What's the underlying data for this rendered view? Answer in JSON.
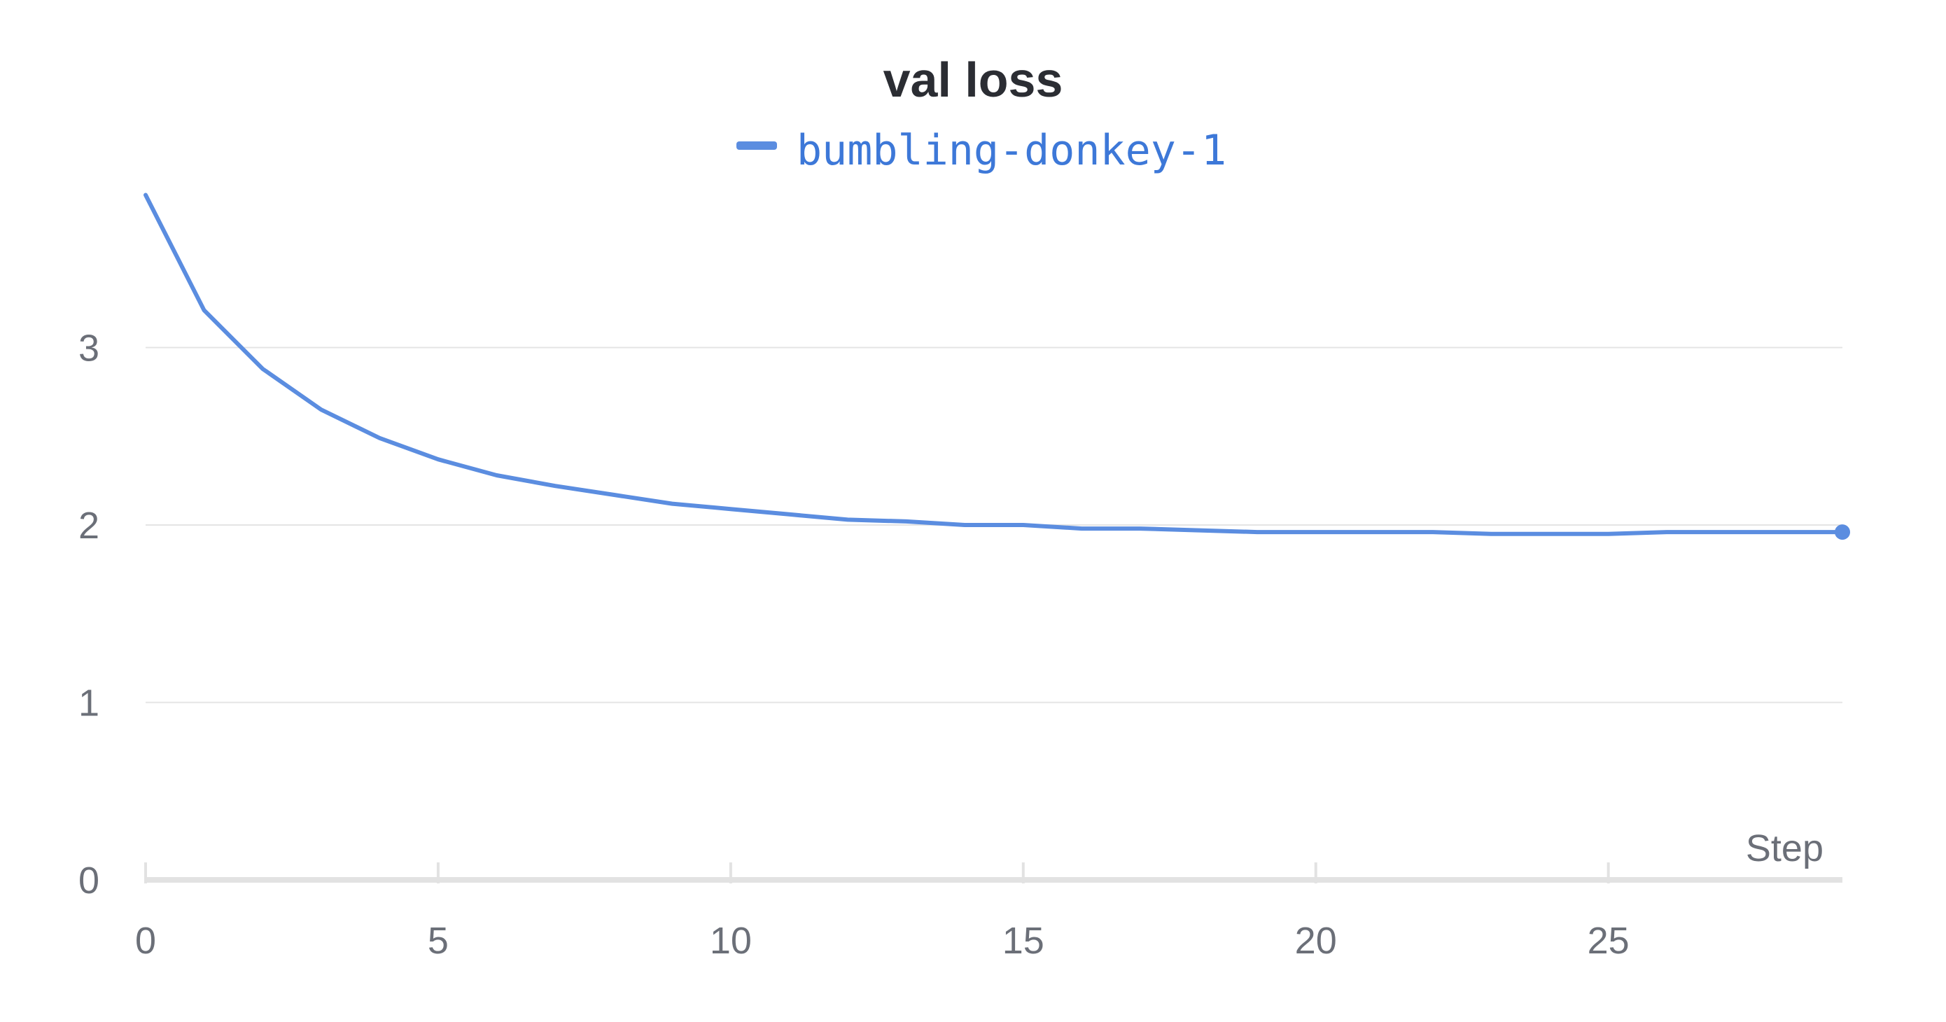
{
  "chart_data": {
    "type": "line",
    "title": "val loss",
    "xlabel": "Step",
    "ylabel": "",
    "xlim": [
      0,
      29
    ],
    "ylim": [
      0,
      3.9
    ],
    "x_ticks": [
      "0",
      "5",
      "10",
      "15",
      "20",
      "25"
    ],
    "y_ticks": [
      "0",
      "1",
      "2",
      "3"
    ],
    "grid": "horizontal",
    "legend": "top-center",
    "colors": {
      "series": "#5b8de0",
      "grid": "#e4e4e4",
      "axis": "#e2e2e2",
      "text": "#6b6f78"
    },
    "series": [
      {
        "name": "bumbling-donkey-1",
        "x": [
          0,
          1,
          2,
          3,
          4,
          5,
          6,
          7,
          8,
          9,
          10,
          11,
          12,
          13,
          14,
          15,
          16,
          17,
          18,
          19,
          20,
          21,
          22,
          23,
          24,
          25,
          26,
          27,
          28,
          29
        ],
        "values": [
          3.86,
          3.21,
          2.88,
          2.65,
          2.49,
          2.37,
          2.28,
          2.22,
          2.17,
          2.12,
          2.09,
          2.06,
          2.03,
          2.02,
          2.0,
          2.0,
          1.98,
          1.98,
          1.97,
          1.96,
          1.96,
          1.96,
          1.96,
          1.95,
          1.95,
          1.95,
          1.96,
          1.96,
          1.96,
          1.96
        ]
      }
    ]
  }
}
